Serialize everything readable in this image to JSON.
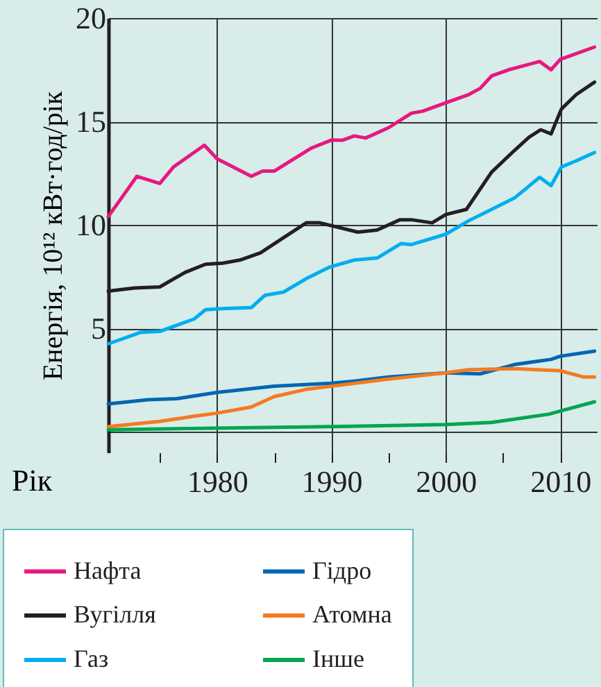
{
  "chart_data": {
    "type": "line",
    "xlabel": "Рік",
    "ylabel": "Енергія, 10¹² кВт·год/рік",
    "xlim": [
      1970.5,
      2013.2
    ],
    "ylim": [
      -1,
      20
    ],
    "xticks": [
      {
        "value": 1975,
        "label": null
      },
      1980,
      {
        "value": 1985,
        "label": null
      },
      1990,
      {
        "value": 1995,
        "label": null
      },
      2000,
      {
        "value": 2005,
        "label": null
      },
      2010
    ],
    "yticks": [
      {
        "value": 0,
        "label": null
      },
      5,
      10,
      15,
      20
    ],
    "grid": true,
    "legend": "bottom",
    "series": [
      {
        "name": "Нафта",
        "color": "#e6197f",
        "x": [
          1970.5,
          1973,
          1975,
          1976.2,
          1978.9,
          1980,
          1983,
          1984,
          1985,
          1988.2,
          1990,
          1991,
          1992,
          1993,
          1995,
          1997,
          1998,
          2000,
          2002,
          2003,
          2004,
          2005.5,
          2008.2,
          2009.2,
          2010,
          2013
        ],
        "values": [
          10.4,
          12.35,
          12.0,
          12.8,
          13.85,
          13.2,
          12.35,
          12.6,
          12.6,
          13.7,
          14.1,
          14.1,
          14.3,
          14.2,
          14.7,
          15.4,
          15.5,
          15.9,
          16.3,
          16.6,
          17.2,
          17.5,
          17.9,
          17.5,
          18.0,
          18.6
        ]
      },
      {
        "name": "Вугілля",
        "color": "#231f20",
        "x": [
          1970.5,
          1972.8,
          1975,
          1977.2,
          1979,
          1980.5,
          1982,
          1983.8,
          1985.6,
          1987.8,
          1989,
          1992.3,
          1994,
          1996,
          1997,
          1998.8,
          2000,
          2001.8,
          2004,
          2006,
          2007.3,
          2008.3,
          2009.2,
          2010.1,
          2011.4,
          2013
        ],
        "values": [
          6.8,
          6.95,
          7.0,
          7.7,
          8.1,
          8.15,
          8.3,
          8.65,
          9.3,
          10.1,
          10.1,
          9.65,
          9.75,
          10.25,
          10.25,
          10.1,
          10.5,
          10.75,
          12.55,
          13.6,
          14.25,
          14.6,
          14.4,
          15.6,
          16.3,
          16.9
        ]
      },
      {
        "name": "Газ",
        "color": "#00aeef",
        "x": [
          1970.5,
          1973.3,
          1975,
          1978,
          1979,
          1980.5,
          1983,
          1984.2,
          1985.8,
          1987.8,
          1989.8,
          1992,
          1994,
          1996.1,
          1997,
          2000,
          2002,
          2004,
          2006,
          2008.2,
          2009.2,
          2010.1,
          2011.4,
          2013
        ],
        "values": [
          4.25,
          4.8,
          4.85,
          5.45,
          5.9,
          5.95,
          6.0,
          6.6,
          6.75,
          7.4,
          7.95,
          8.3,
          8.4,
          9.1,
          9.05,
          9.55,
          10.2,
          10.75,
          11.3,
          12.3,
          11.9,
          12.8,
          13.1,
          13.5
        ]
      },
      {
        "name": "Гідро",
        "color": "#0066b3",
        "x": [
          1970.5,
          1974,
          1976.5,
          1980,
          1985,
          1990,
          1992,
          1995,
          2000,
          2003,
          2006,
          2009.2,
          2010,
          2013
        ],
        "values": [
          1.35,
          1.55,
          1.6,
          1.9,
          2.2,
          2.35,
          2.45,
          2.65,
          2.85,
          2.8,
          3.25,
          3.5,
          3.65,
          3.9
        ]
      },
      {
        "name": "Атомна",
        "color": "#f47b20",
        "x": [
          1970.5,
          1975,
          1978,
          1980,
          1983,
          1985,
          1987.8,
          1990,
          1995,
          2000,
          2002,
          2006,
          2010,
          2012,
          2013
        ],
        "values": [
          0.25,
          0.5,
          0.75,
          0.9,
          1.2,
          1.7,
          2.05,
          2.2,
          2.55,
          2.85,
          3.0,
          3.05,
          2.95,
          2.65,
          2.65
        ]
      },
      {
        "name": "Інше",
        "color": "#00a651",
        "x": [
          1970.5,
          1990,
          2000,
          2004,
          2009,
          2010,
          2013
        ],
        "values": [
          0.1,
          0.25,
          0.35,
          0.45,
          0.85,
          1.0,
          1.45
        ]
      }
    ]
  }
}
